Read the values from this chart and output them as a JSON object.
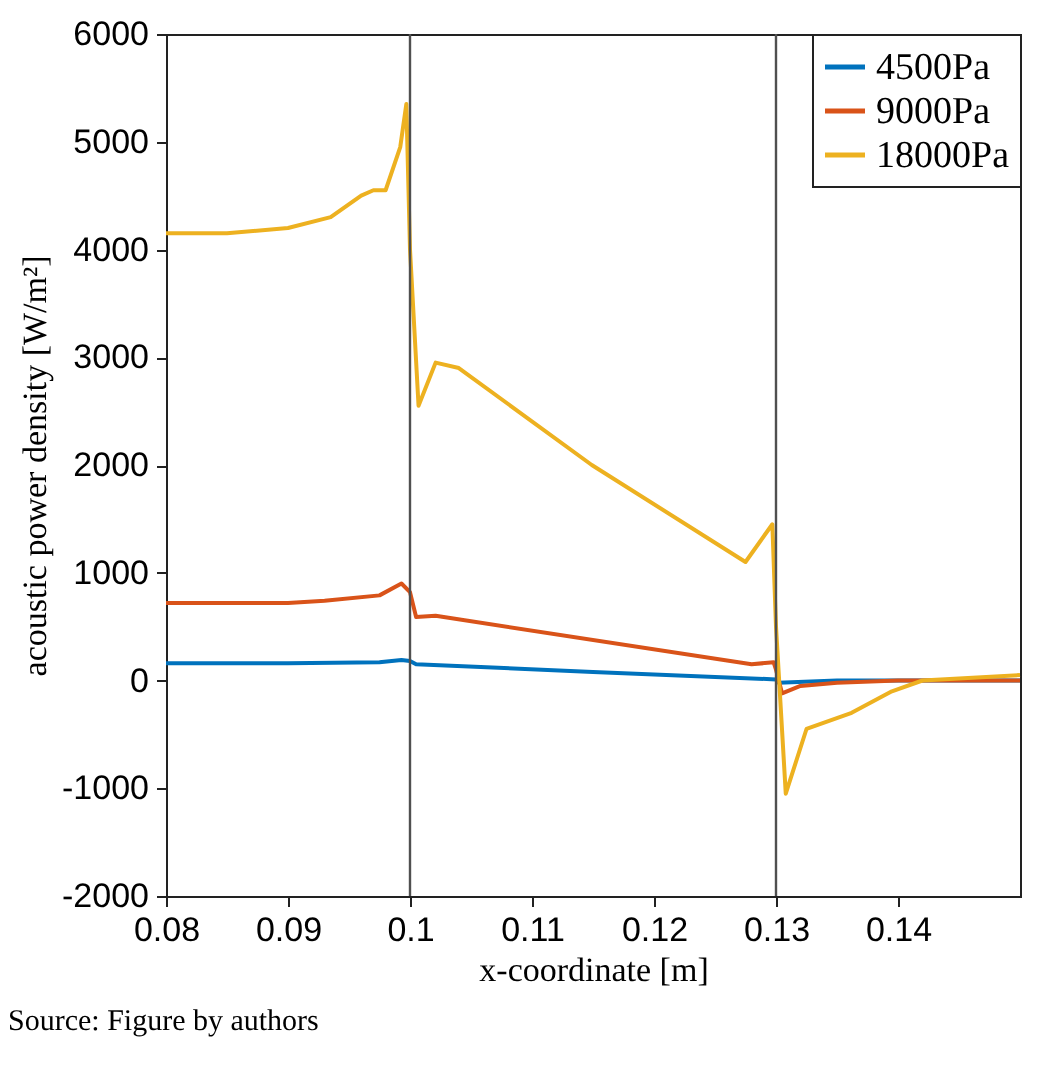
{
  "chart_data": {
    "type": "line",
    "xlabel": "x-coordinate [m]",
    "ylabel": "acoustic power density [W/m²]",
    "xlim": [
      0.08,
      0.15
    ],
    "xticks": [
      0.08,
      0.09,
      0.1,
      0.11,
      0.12,
      0.13,
      0.14
    ],
    "ylim": [
      -2000,
      6000
    ],
    "yticks": [
      -2000,
      -1000,
      0,
      1000,
      2000,
      3000,
      4000,
      5000,
      6000
    ],
    "grid": false,
    "legend": "top right",
    "line_style": "solid",
    "ref_lines": [
      {
        "axis": "x",
        "value": 0.1,
        "color": "#505050"
      },
      {
        "axis": "x",
        "value": 0.13,
        "color": "#505050"
      }
    ],
    "annotations": [
      "Source: Figure by authors"
    ],
    "series": [
      {
        "name": "4500Pa",
        "color": "#0072bd",
        "x": [
          0.08,
          0.09,
          0.0975,
          0.0993,
          0.1,
          0.1005,
          0.115,
          0.13,
          0.1302,
          0.135,
          0.14,
          0.15
        ],
        "values": [
          160,
          160,
          170,
          190,
          180,
          150,
          80,
          10,
          -20,
          0,
          0,
          0
        ]
      },
      {
        "name": "9000Pa",
        "color": "#d95319",
        "x": [
          0.08,
          0.09,
          0.093,
          0.0975,
          0.0993,
          0.1,
          0.1005,
          0.1021,
          0.128,
          0.1298,
          0.13,
          0.1305,
          0.132,
          0.135,
          0.14,
          0.15
        ],
        "values": [
          720,
          720,
          740,
          790,
          900,
          820,
          590,
          600,
          150,
          170,
          100,
          -120,
          -50,
          -20,
          0,
          0
        ]
      },
      {
        "name": "18000Pa",
        "color": "#edb120",
        "x": [
          0.08,
          0.085,
          0.09,
          0.0935,
          0.096,
          0.097,
          0.098,
          0.0992,
          0.0997,
          0.1,
          0.1007,
          0.1021,
          0.104,
          0.1149,
          0.1275,
          0.1297,
          0.13,
          0.1308,
          0.1325,
          0.1362,
          0.1395,
          0.142,
          0.15
        ],
        "values": [
          4150,
          4150,
          4200,
          4300,
          4500,
          4550,
          4550,
          4950,
          5350,
          4000,
          2550,
          2950,
          2900,
          2000,
          1100,
          1450,
          500,
          -1050,
          -450,
          -300,
          -100,
          0,
          50
        ]
      }
    ]
  }
}
